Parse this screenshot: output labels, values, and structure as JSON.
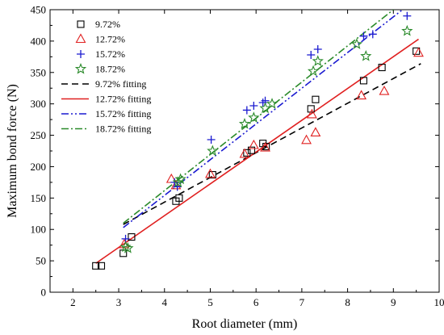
{
  "chart_data": {
    "type": "scatter",
    "title": "",
    "xlabel": "Root diameter (mm)",
    "ylabel": "Maximum bond force (N)",
    "xlim": [
      1.5,
      10
    ],
    "ylim": [
      0,
      450
    ],
    "xticks": [
      "2",
      "3",
      "4",
      "5",
      "6",
      "7",
      "8",
      "9",
      "10"
    ],
    "yticks": [
      "0",
      "50",
      "100",
      "150",
      "200",
      "250",
      "300",
      "350",
      "400",
      "450"
    ],
    "grid": false,
    "legend_position": "top-left",
    "series": [
      {
        "name": "9.72%",
        "marker": "square",
        "color": "#000000",
        "points": [
          [
            2.5,
            42
          ],
          [
            2.62,
            42
          ],
          [
            3.1,
            62
          ],
          [
            3.28,
            88
          ],
          [
            4.25,
            145
          ],
          [
            4.32,
            150
          ],
          [
            5.05,
            187
          ],
          [
            5.8,
            222
          ],
          [
            5.9,
            226
          ],
          [
            6.15,
            237
          ],
          [
            6.22,
            232
          ],
          [
            7.2,
            292
          ],
          [
            7.3,
            307
          ],
          [
            8.35,
            337
          ],
          [
            8.75,
            358
          ],
          [
            9.5,
            384
          ]
        ]
      },
      {
        "name": "12.72%",
        "marker": "triangle",
        "color": "#e02020",
        "points": [
          [
            3.12,
            76
          ],
          [
            4.15,
            180
          ],
          [
            4.25,
            170
          ],
          [
            5.0,
            188
          ],
          [
            5.75,
            220
          ],
          [
            5.95,
            234
          ],
          [
            6.2,
            230
          ],
          [
            7.1,
            242
          ],
          [
            7.22,
            283
          ],
          [
            7.3,
            254
          ],
          [
            8.3,
            313
          ],
          [
            8.8,
            320
          ],
          [
            9.55,
            381
          ]
        ]
      },
      {
        "name": "15.72%",
        "marker": "plus",
        "color": "#1a1ad0",
        "points": [
          [
            3.15,
            85
          ],
          [
            4.22,
            175
          ],
          [
            4.28,
            168
          ],
          [
            5.02,
            243
          ],
          [
            5.8,
            290
          ],
          [
            5.95,
            297
          ],
          [
            6.15,
            302
          ],
          [
            6.2,
            305
          ],
          [
            7.2,
            378
          ],
          [
            7.35,
            387
          ],
          [
            8.35,
            408
          ],
          [
            8.55,
            411
          ],
          [
            9.3,
            440
          ]
        ]
      },
      {
        "name": "18.72%",
        "marker": "star",
        "color": "#2a8a2a",
        "points": [
          [
            3.15,
            72
          ],
          [
            3.2,
            70
          ],
          [
            4.3,
            175
          ],
          [
            4.35,
            180
          ],
          [
            5.05,
            225
          ],
          [
            5.75,
            268
          ],
          [
            5.95,
            278
          ],
          [
            6.2,
            293
          ],
          [
            6.35,
            300
          ],
          [
            7.25,
            352
          ],
          [
            7.35,
            368
          ],
          [
            8.2,
            395
          ],
          [
            8.4,
            376
          ],
          [
            9.3,
            416
          ]
        ]
      }
    ],
    "fits": [
      {
        "name": "9.72% fitting",
        "color": "#000000",
        "dash": "8,5",
        "x": [
          3.1,
          9.6
        ],
        "y": [
          108,
          364
        ]
      },
      {
        "name": "12.72% fitting",
        "color": "#e02020",
        "dash": "",
        "x": [
          2.5,
          9.55
        ],
        "y": [
          46,
          403
        ]
      },
      {
        "name": "15.72% fitting",
        "color": "#1a1ad0",
        "dash": "9,3,2,3,2,3",
        "x": [
          3.1,
          9.2
        ],
        "y": [
          103,
          450
        ]
      },
      {
        "name": "18.72% fitting",
        "color": "#2a8a2a",
        "dash": "9,3,2,3",
        "x": [
          3.1,
          9.0
        ],
        "y": [
          110,
          450
        ]
      }
    ]
  }
}
